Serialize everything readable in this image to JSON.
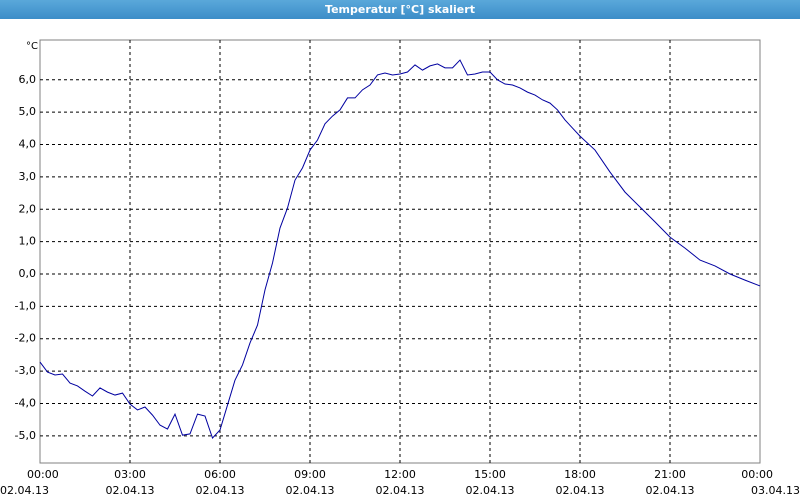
{
  "chart_data": {
    "type": "line",
    "title": "Temperatur [°C] skaliert",
    "y_label": "°C",
    "color": "#0000a0",
    "grid": true,
    "x": [
      0,
      0.25,
      0.5,
      0.75,
      1,
      1.25,
      1.5,
      1.75,
      2,
      2.25,
      2.5,
      2.75,
      3,
      3.25,
      3.5,
      3.75,
      4,
      4.25,
      4.5,
      4.75,
      5,
      5.25,
      5.5,
      5.75,
      6,
      6.25,
      6.5,
      6.75,
      7,
      7.25,
      7.5,
      7.75,
      8,
      8.25,
      8.5,
      8.75,
      9,
      9.25,
      9.5,
      9.75,
      10,
      10.25,
      10.5,
      10.75,
      11,
      11.25,
      11.5,
      11.75,
      12,
      12.25,
      12.5,
      12.75,
      13,
      13.25,
      13.5,
      13.75,
      14,
      14.25,
      14.5,
      14.75,
      15,
      15.25,
      15.5,
      15.75,
      16,
      16.25,
      16.5,
      16.75,
      17,
      17.25,
      17.5,
      17.75,
      18,
      18.5,
      19,
      19.5,
      20,
      20.5,
      21,
      21.5,
      22,
      22.5,
      23,
      23.5,
      24
    ],
    "values": [
      -2.72,
      -3.03,
      -3.12,
      -3.09,
      -3.37,
      -3.46,
      -3.62,
      -3.77,
      -3.52,
      -3.65,
      -3.74,
      -3.68,
      -4.02,
      -4.2,
      -4.11,
      -4.36,
      -4.67,
      -4.79,
      -4.33,
      -4.98,
      -4.94,
      -4.33,
      -4.39,
      -5.07,
      -4.82,
      -4.05,
      -3.28,
      -2.81,
      -2.13,
      -1.58,
      -0.49,
      0.34,
      1.42,
      2.04,
      2.9,
      3.28,
      3.83,
      4.14,
      4.64,
      4.88,
      5.07,
      5.44,
      5.44,
      5.69,
      5.84,
      6.15,
      6.21,
      6.15,
      6.18,
      6.24,
      6.46,
      6.3,
      6.43,
      6.49,
      6.37,
      6.37,
      6.61,
      6.15,
      6.18,
      6.24,
      6.24,
      6.0,
      5.87,
      5.84,
      5.75,
      5.62,
      5.53,
      5.38,
      5.28,
      5.07,
      4.76,
      4.51,
      4.26,
      3.83,
      3.15,
      2.53,
      2.07,
      1.61,
      1.14,
      0.8,
      0.43,
      0.25,
      0.0,
      -0.19,
      -0.37
    ],
    "xlim": [
      0,
      24
    ],
    "xticks": [
      {
        "value": 0,
        "label": "00:00"
      },
      {
        "value": 3,
        "label": "03:00"
      },
      {
        "value": 6,
        "label": "06:00"
      },
      {
        "value": 9,
        "label": "09:00"
      },
      {
        "value": 12,
        "label": "12:00"
      },
      {
        "value": 15,
        "label": "15:00"
      },
      {
        "value": 18,
        "label": "18:00"
      },
      {
        "value": 21,
        "label": "21:00"
      },
      {
        "value": 24,
        "label": "00:00"
      }
    ],
    "xtick_dates": [
      "02.04.13",
      "02.04.13",
      "02.04.13",
      "02.04.13",
      "02.04.13",
      "02.04.13",
      "02.04.13",
      "02.04.13",
      "03.04.13"
    ],
    "ylim": [
      -5.84,
      7.23
    ],
    "yticks": [
      {
        "value": -5,
        "label": "-5,0"
      },
      {
        "value": -4,
        "label": "-4,0"
      },
      {
        "value": -3,
        "label": "-3,0"
      },
      {
        "value": -2,
        "label": "-2,0"
      },
      {
        "value": -1,
        "label": "-1,0"
      },
      {
        "value": 0,
        "label": "0,0"
      },
      {
        "value": 1,
        "label": "1,0"
      },
      {
        "value": 2,
        "label": "2,0"
      },
      {
        "value": 3,
        "label": "3,0"
      },
      {
        "value": 4,
        "label": "4,0"
      },
      {
        "value": 5,
        "label": "5,0"
      },
      {
        "value": 6,
        "label": "6,0"
      }
    ]
  }
}
